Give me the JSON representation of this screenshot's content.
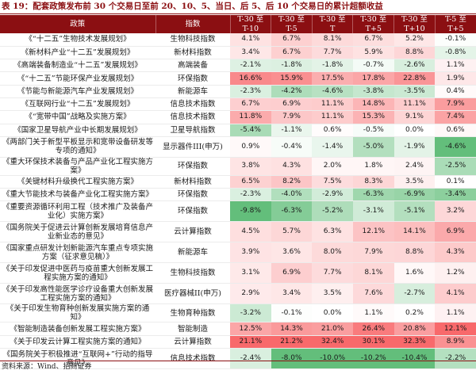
{
  "title": "表 19：配套政策发布前 30 个交易日至前 20、10、5、当日、后 5、后 10 个交易日的累计超额收益",
  "source": "资料来源：Wind、招商证券",
  "headers": {
    "policy": "政策",
    "index": "指数",
    "periods": [
      "T-30 至\nT-10",
      "T-30 至\nT-5",
      "T-30 至\nT",
      "T-30 至\nT+5",
      "T-30 至\nT+10",
      "T-5 至\nT+5"
    ]
  },
  "rows": [
    {
      "policy": "《“十二五”生物技术发展规划》",
      "index": "生物科技指数",
      "values": [
        "4.1%",
        "6.7%",
        "8.1%",
        "6.7%",
        "5.2%",
        "-0.1%"
      ]
    },
    {
      "policy": "《新材料产业“十二五”发展规划》",
      "index": "新材料指数",
      "values": [
        "3.4%",
        "6.7%",
        "7.7%",
        "5.9%",
        "8.8%",
        "-0.8%"
      ]
    },
    {
      "policy": "《高端装备制造业“十二五”发展规划》",
      "index": "高端装备",
      "values": [
        "-2.1%",
        "-1.8%",
        "-1.8%",
        "-0.7%",
        "-2.6%",
        "1.1%"
      ]
    },
    {
      "policy": "《“十二五”节能环保产业发展规划》",
      "index": "环保指数",
      "values": [
        "16.6%",
        "15.9%",
        "17.5%",
        "17.8%",
        "22.8%",
        "1.9%"
      ]
    },
    {
      "policy": "《节能与新能源汽车产业发展规划》",
      "index": "新能源车",
      "values": [
        "-2.3%",
        "-4.2%",
        "-4.6%",
        "-3.8%",
        "-3.5%",
        "0.4%"
      ]
    },
    {
      "policy": "《互联网行业“十二五”发展规划》",
      "index": "信息技术指数",
      "values": [
        "6.7%",
        "6.9%",
        "11.1%",
        "14.8%",
        "11.1%",
        "7.9%"
      ]
    },
    {
      "policy": "《“宽带中国”战略及实施方案》",
      "index": "信息技术指数",
      "values": [
        "11.8%",
        "7.9%",
        "11.1%",
        "15.3%",
        "9.1%",
        "7.4%"
      ]
    },
    {
      "policy": "《国家卫星导航产业中长期发展规划》",
      "index": "卫星导航指数",
      "values": [
        "-5.4%",
        "-1.1%",
        "0.6%",
        "-0.5%",
        "0.0%",
        "0.6%"
      ]
    },
    {
      "policy": "《两部门关于新型平板显示和宽带设备研发等专项的通知》",
      "index": "显示器件III(申万)",
      "values": [
        "0.9%",
        "-0.4%",
        "-1.4%",
        "-5.0%",
        "-1.9%",
        "-4.6%"
      ]
    },
    {
      "policy": "《重大环保技术装备与产品产业化工程实施方案》",
      "index": "环保指数",
      "values": [
        "3.8%",
        "4.3%",
        "2.0%",
        "1.8%",
        "2.4%",
        "-2.5%"
      ]
    },
    {
      "policy": "《关键材料升级换代工程实施方案》",
      "index": "新材料指数",
      "values": [
        "6.5%",
        "8.2%",
        "7.5%",
        "8.3%",
        "3.5%",
        "0.1%"
      ]
    },
    {
      "policy": "《重大节能技术与装备产业化工程实施方案》",
      "index": "环保指数",
      "values": [
        "-2.3%",
        "-4.0%",
        "-2.9%",
        "-6.3%",
        "-6.9%",
        "-3.4%"
      ]
    },
    {
      "policy": "《重要资源循环利用工程（技术推广及装备产业化）实施方案》",
      "index": "环保指数",
      "values": [
        "-9.8%",
        "-6.3%",
        "-5.2%",
        "-3.1%",
        "-5.1%",
        "3.2%"
      ]
    },
    {
      "policy": "《国务院关于促进云计算创新发展培育信息产业新业态的意见》",
      "index": "云计算指数",
      "values": [
        "4.5%",
        "5.7%",
        "6.3%",
        "12.1%",
        "14.1%",
        "6.9%"
      ]
    },
    {
      "policy": "《国家重点研发计划新能源汽车重点专项实施方案（征求意见稿）》",
      "index": "新能源车",
      "values": [
        "3.9%",
        "3.6%",
        "8.0%",
        "7.9%",
        "8.8%",
        "4.3%"
      ]
    },
    {
      "policy": "《关于印发促进中医药与疫苗重大创新发展工程实施方案的通知》",
      "index": "生物科技指数",
      "values": [
        "3.1%",
        "6.9%",
        "7.7%",
        "8.1%",
        "1.6%",
        "1.2%"
      ]
    },
    {
      "policy": "《关于印发高性能医学诊疗设备重大创新发展工程实施方案的通知》",
      "index": "医疗器械II(申万)",
      "values": [
        "2.9%",
        "3.4%",
        "3.5%",
        "7.6%",
        "-2.7%",
        "4.1%"
      ]
    },
    {
      "policy": "《关于印发生物育种创新发展实施方案的通知》",
      "index": "生物育种指数",
      "values": [
        "-3.2%",
        "-0.1%",
        "0.0%",
        "1.1%",
        "0.2%",
        "1.1%"
      ]
    },
    {
      "policy": "《智能制造装备创新发展工程实施方案》",
      "index": "智能制造",
      "values": [
        "12.5%",
        "14.3%",
        "21.0%",
        "26.4%",
        "20.8%",
        "12.1%"
      ]
    },
    {
      "policy": "《关于印发云计算工程实施方案的通知》",
      "index": "云计算指数",
      "values": [
        "21.1%",
        "21.2%",
        "32.4%",
        "30.1%",
        "32.3%",
        "8.9%"
      ]
    },
    {
      "policy": "《国务院关于积极推进“互联网+”行动的指导意见》",
      "index": "信息技术指数",
      "values": [
        "-2.4%",
        "-8.0%",
        "-10.0%",
        "-10.2%",
        "-10.4%",
        "-2.2%"
      ]
    }
  ],
  "colors": {
    "header_bg": "#8b0f12",
    "title": "#8b0f12",
    "positive_max": "#f8696b",
    "negative_max": "#63be7b",
    "neutral": "#ffffff"
  }
}
